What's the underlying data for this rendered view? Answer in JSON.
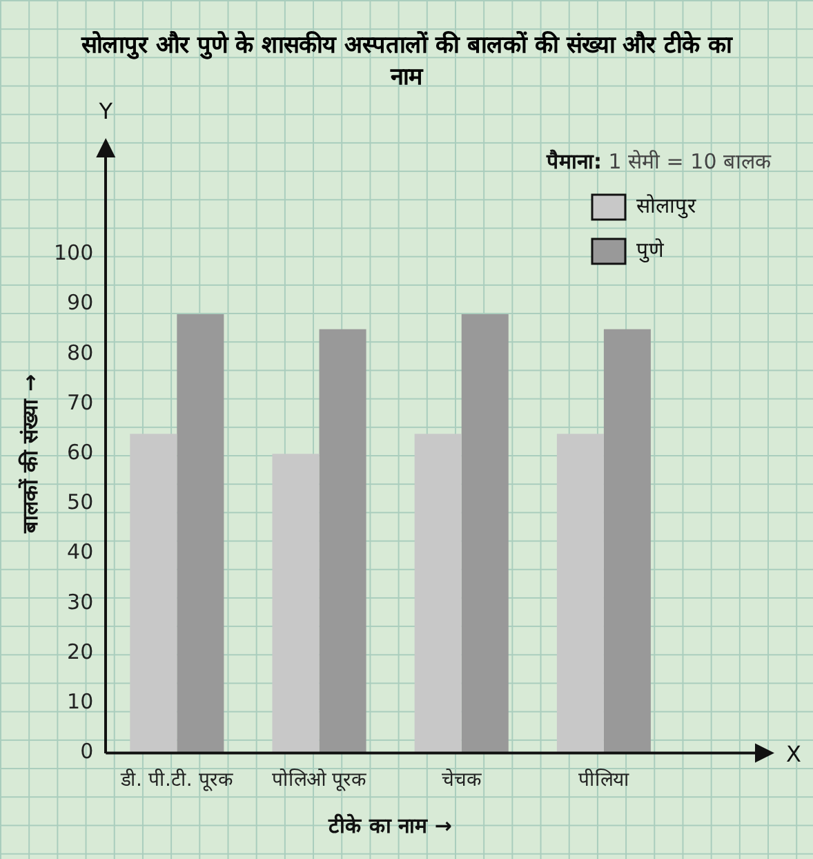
{
  "chart_data": {
    "type": "bar",
    "title": "सोलापुर और पुणे के शासकीय अस्पतालों की बालकों की संख्या और टीके का नाम",
    "xlabel": "टीके का नाम →",
    "ylabel": "बालकों की संख्या →",
    "categories": [
      "डी. पी.टी. पूरक",
      "पोलिओ पूरक",
      "चेचक",
      "पीलिया"
    ],
    "series": [
      {
        "name": "सोलापुर",
        "color": "#c8c8c8",
        "values": [
          64,
          60,
          64,
          64
        ]
      },
      {
        "name": "पुणे",
        "color": "#999999",
        "values": [
          88,
          85,
          88,
          85
        ]
      }
    ],
    "ylim": [
      0,
      120
    ],
    "yticks": [
      0,
      10,
      20,
      30,
      40,
      50,
      60,
      70,
      80,
      90,
      100
    ],
    "annotations": [
      "पैमाना: 1 सेमी = 10 बालक",
      "Y",
      "X"
    ],
    "legend": "top right",
    "grid": false
  }
}
